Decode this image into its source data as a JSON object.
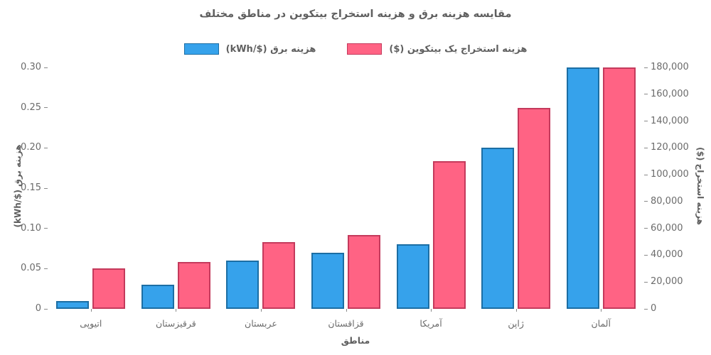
{
  "title": "مقایسه هزینه برق و هزینه استخراج بیتکوین در مناطق مختلف",
  "legend": [
    {
      "label": "هزینه برق ($/kWh)",
      "color": "#36A2EB",
      "border": "#1c6ea4"
    },
    {
      "label": "هزینه استخراج یک بیتکوین ($)",
      "color": "#FF6384",
      "border": "#c43a5c"
    }
  ],
  "chart_data": {
    "type": "bar",
    "title": "مقایسه هزینه برق و هزینه استخراج بیتکوین در مناطق مختلف",
    "categories": [
      "اتیوپی",
      "قرقیزستان",
      "عربستان",
      "قزاقستان",
      "آمریکا",
      "ژاپن",
      "آلمان"
    ],
    "series": [
      {
        "name": "هزینه برق ($/kWh)",
        "axis": "left",
        "values": [
          0.01,
          0.03,
          0.06,
          0.07,
          0.08,
          0.2,
          0.3
        ],
        "color": "#36A2EB",
        "border_color": "#1c6ea4"
      },
      {
        "name": "هزینه استخراج یک بیتکوین ($)",
        "axis": "right",
        "values": [
          30000,
          35000,
          50000,
          55000,
          110000,
          150000,
          180000
        ],
        "color": "#FF6384",
        "border_color": "#c43a5c"
      }
    ],
    "xlabel": "مناطق",
    "ylabel_left": "هزینه برق ($/kWh)",
    "ylabel_right": "هزینه استخراج ($)",
    "ylim_left": [
      0,
      0.3
    ],
    "ylim_right": [
      0,
      180000
    ],
    "left_ticks": [
      "0",
      "0.05",
      "0.10",
      "0.15",
      "0.20",
      "0.25",
      "0.30"
    ],
    "right_ticks": [
      "0",
      "20,000",
      "40,000",
      "60,000",
      "80,000",
      "100,000",
      "120,000",
      "140,000",
      "160,000",
      "180,000"
    ],
    "grid": false,
    "legend_position": "top-center"
  },
  "colors": {
    "background": "#ffffff",
    "text": "#5f5f5f",
    "tick_text": "#6b6b6b",
    "tick_mark": "#8a8a8a",
    "blue": "#36A2EB",
    "blue_border": "#1c6ea4",
    "pink": "#FF6384",
    "pink_border": "#c43a5c"
  }
}
